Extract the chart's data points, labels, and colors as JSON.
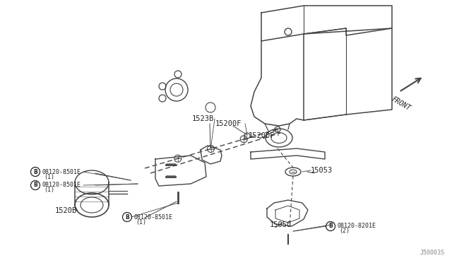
{
  "bg_color": "#ffffff",
  "line_color": "#444444",
  "text_color": "#222222",
  "diagram_ref": "J50003S",
  "front_text": "FRONT",
  "parts": {
    "15200F_label1": "15200F",
    "15200F_label2": "15200F",
    "1523B": "1523B",
    "15053": "15053",
    "15050": "15050",
    "1520B": "1520B",
    "bolt_8501E": "08120-8501E",
    "bolt_8201E": "08120-8201E",
    "qty1": "(1)",
    "qty2": "(2)"
  }
}
